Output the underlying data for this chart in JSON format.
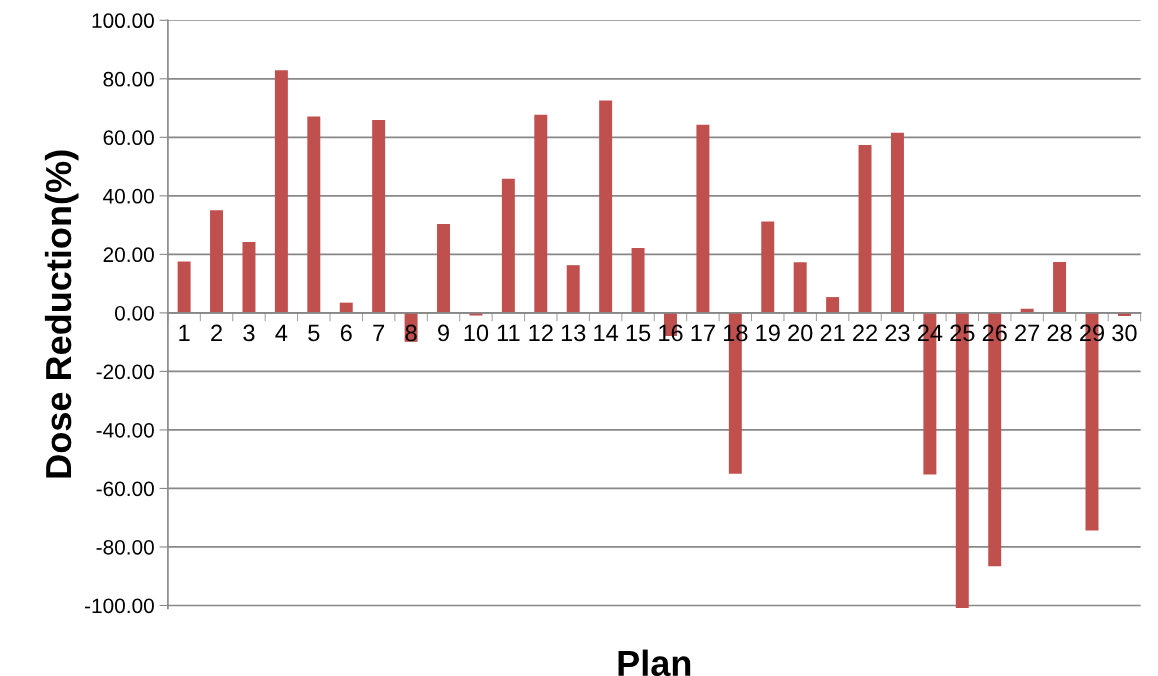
{
  "chart_data": {
    "type": "bar",
    "xlabel": "Plan",
    "ylabel": "Dose Reduction(%)",
    "categories": [
      "1",
      "2",
      "3",
      "4",
      "5",
      "6",
      "7",
      "8",
      "9",
      "10",
      "11",
      "12",
      "13",
      "14",
      "15",
      "16",
      "17",
      "18",
      "19",
      "20",
      "21",
      "22",
      "23",
      "24",
      "25",
      "26",
      "27",
      "28",
      "29",
      "30"
    ],
    "values": [
      17.6,
      35.1,
      24.2,
      82.9,
      67.1,
      3.5,
      65.9,
      -9.9,
      30.4,
      -0.9,
      45.8,
      67.7,
      16.3,
      72.6,
      22.2,
      -7.9,
      64.3,
      -55.0,
      31.2,
      17.3,
      5.4,
      57.4,
      61.6,
      -55.2,
      -100.9,
      -86.6,
      1.4,
      17.4,
      -74.4,
      -1.1
    ],
    "color": "#c0504d",
    "ylim": [
      -101,
      100
    ],
    "yticks": [
      {
        "value": -100,
        "label": "-100.00"
      },
      {
        "value": -80,
        "label": "-80.00"
      },
      {
        "value": -60,
        "label": "-60.00"
      },
      {
        "value": -40,
        "label": "-40.00"
      },
      {
        "value": -20,
        "label": "-20.00"
      },
      {
        "value": 0,
        "label": "0.00"
      },
      {
        "value": 20,
        "label": "20.00"
      },
      {
        "value": 40,
        "label": "40.00"
      },
      {
        "value": 60,
        "label": "60.00"
      },
      {
        "value": 80,
        "label": "80.00"
      },
      {
        "value": 100,
        "label": "100.00"
      }
    ],
    "grid": "y",
    "legend": false
  }
}
